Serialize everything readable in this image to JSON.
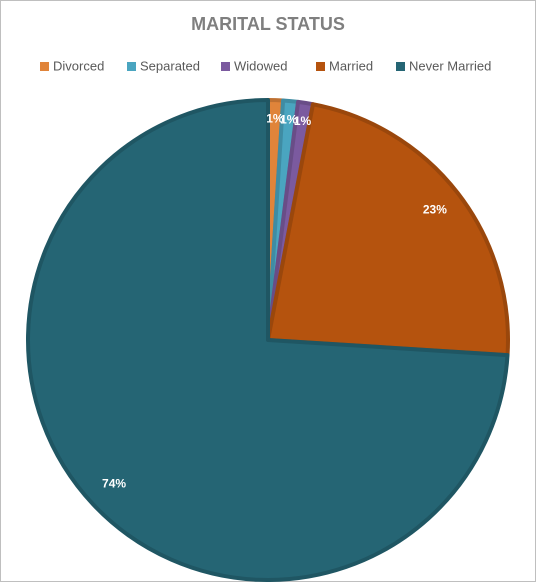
{
  "chart_data": {
    "type": "pie",
    "title": "MARITAL STATUS",
    "categories": [
      "Divorced",
      "Separated",
      "Widowed",
      "Married",
      "Never Married"
    ],
    "values": [
      1,
      1,
      1,
      23,
      74
    ],
    "value_labels": [
      "1%",
      "1%",
      "1%",
      "23%",
      "74%"
    ],
    "colors": [
      "#e0843a",
      "#4aa5c0",
      "#7b5a9f",
      "#b5530e",
      "#256574"
    ],
    "legend": "top"
  }
}
